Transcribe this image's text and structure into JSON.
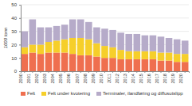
{
  "chart_data": {
    "type": "bar",
    "stacked": true,
    "grid": true,
    "legend": "bottom",
    "y_label": "1000 tonn",
    "categories": [
      "2000",
      "2001",
      "2002",
      "2003",
      "2004",
      "2005",
      "2006",
      "2007",
      "2008",
      "2009",
      "2010",
      "2011",
      "2012",
      "2013",
      "2014",
      "2015",
      "2016",
      "2017",
      "2018",
      "2019",
      "2020"
    ],
    "series": [
      {
        "name": "Felt",
        "color": "#ef6f4f",
        "values": [
          13,
          14,
          13,
          14,
          14,
          14,
          13,
          12,
          12,
          11,
          10,
          10,
          9,
          9,
          9,
          9,
          9,
          8,
          8,
          7,
          7
        ]
      },
      {
        "name": "Felt under kvotering",
        "color": "#f6cf2a",
        "values": [
          5,
          6,
          7,
          8,
          9,
          10,
          12,
          13,
          12,
          10,
          9,
          8,
          7,
          6,
          6,
          6,
          6,
          6,
          6,
          6,
          6
        ]
      },
      {
        "name": "Terminaler, ilandføring og diffusutslipp",
        "color": "#b6abc9",
        "values": [
          12,
          19,
          13,
          11,
          11,
          11,
          14,
          14,
          13,
          12,
          13,
          13,
          13,
          13,
          13,
          12,
          12,
          12,
          11,
          11,
          10
        ]
      }
    ],
    "ylim": [
      0,
      50
    ],
    "yticks": [
      0,
      10,
      20,
      30,
      40,
      50
    ]
  }
}
